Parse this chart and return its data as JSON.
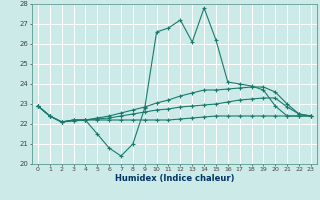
{
  "x": [
    0,
    1,
    2,
    3,
    4,
    5,
    6,
    7,
    8,
    9,
    10,
    11,
    12,
    13,
    14,
    15,
    16,
    17,
    18,
    19,
    20,
    21,
    22,
    23
  ],
  "line1": [
    22.9,
    22.4,
    22.1,
    22.2,
    22.2,
    21.5,
    20.8,
    20.4,
    21.0,
    22.8,
    26.6,
    26.8,
    27.2,
    26.1,
    27.8,
    26.2,
    24.1,
    24.0,
    23.9,
    23.7,
    22.9,
    22.4,
    22.4,
    22.4
  ],
  "line2": [
    22.9,
    22.4,
    22.1,
    22.2,
    22.2,
    22.3,
    22.4,
    22.55,
    22.7,
    22.85,
    23.05,
    23.2,
    23.4,
    23.55,
    23.7,
    23.7,
    23.75,
    23.8,
    23.85,
    23.85,
    23.6,
    23.0,
    22.5,
    22.4
  ],
  "line3": [
    22.9,
    22.4,
    22.1,
    22.2,
    22.2,
    22.25,
    22.3,
    22.4,
    22.5,
    22.6,
    22.7,
    22.75,
    22.85,
    22.9,
    22.95,
    23.0,
    23.1,
    23.2,
    23.25,
    23.3,
    23.3,
    22.85,
    22.5,
    22.4
  ],
  "line4": [
    22.9,
    22.4,
    22.1,
    22.15,
    22.2,
    22.2,
    22.2,
    22.2,
    22.2,
    22.2,
    22.2,
    22.2,
    22.25,
    22.3,
    22.35,
    22.4,
    22.4,
    22.4,
    22.4,
    22.4,
    22.4,
    22.4,
    22.4,
    22.4
  ],
  "bg_color": "#cceae7",
  "grid_color": "#ffffff",
  "line_color": "#1a7a6e",
  "xlabel": "Humidex (Indice chaleur)",
  "ylim": [
    20,
    28
  ],
  "xlim": [
    -0.5,
    23.5
  ],
  "yticks": [
    20,
    21,
    22,
    23,
    24,
    25,
    26,
    27,
    28
  ],
  "xticks": [
    0,
    1,
    2,
    3,
    4,
    5,
    6,
    7,
    8,
    9,
    10,
    11,
    12,
    13,
    14,
    15,
    16,
    17,
    18,
    19,
    20,
    21,
    22,
    23
  ]
}
